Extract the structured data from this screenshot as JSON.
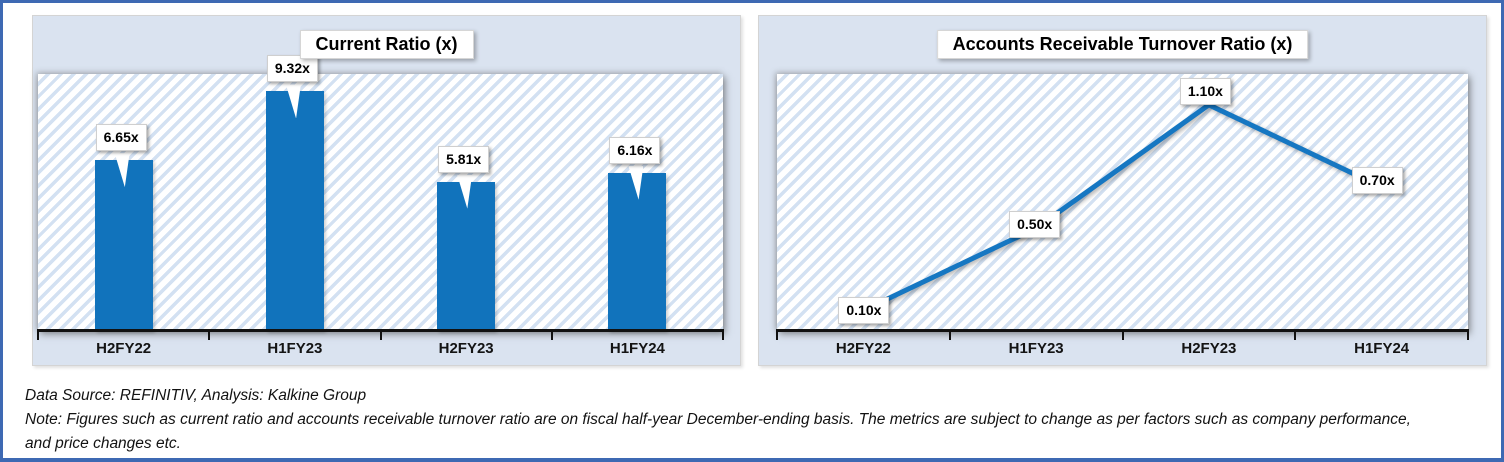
{
  "page": {
    "border_color": "#3E69B3",
    "background_color": "#FFFFFF",
    "panel_background": "#DAE3F0",
    "hatch_stripe_color": "#D3E1F2",
    "axis_color": "#111111"
  },
  "chart_data": [
    {
      "type": "bar",
      "title": "Current Ratio (x)",
      "categories": [
        "H2FY22",
        "H1FY23",
        "H2FY23",
        "H1FY24"
      ],
      "values": [
        6.65,
        9.32,
        5.81,
        6.16
      ],
      "value_labels": [
        "6.65x",
        "9.32x",
        "5.81x",
        "6.16x"
      ],
      "xlabel": "",
      "ylabel": "",
      "ylim": [
        0,
        10
      ],
      "grid": false,
      "legend_position": "none",
      "bar_color": "#1173BC"
    },
    {
      "type": "line",
      "title": "Accounts Receivable Turnover Ratio (x)",
      "categories": [
        "H2FY22",
        "H1FY23",
        "H2FY23",
        "H1FY24"
      ],
      "values": [
        0.1,
        0.5,
        1.1,
        0.7
      ],
      "value_labels": [
        "0.10x",
        "0.50x",
        "1.10x",
        "0.70x"
      ],
      "xlabel": "",
      "ylabel": "",
      "ylim": [
        0,
        1.25
      ],
      "grid": false,
      "legend_position": "none",
      "line_color": "#1677C2"
    }
  ],
  "footer": {
    "source_line": "Data Source: REFINITIV, Analysis: Kalkine Group",
    "note_lines": [
      "Note: Figures such as current ratio and accounts receivable turnover ratio are on fiscal half-year December-ending basis. The metrics are subject to change as per factors such as company performance,",
      "and price changes etc."
    ]
  }
}
